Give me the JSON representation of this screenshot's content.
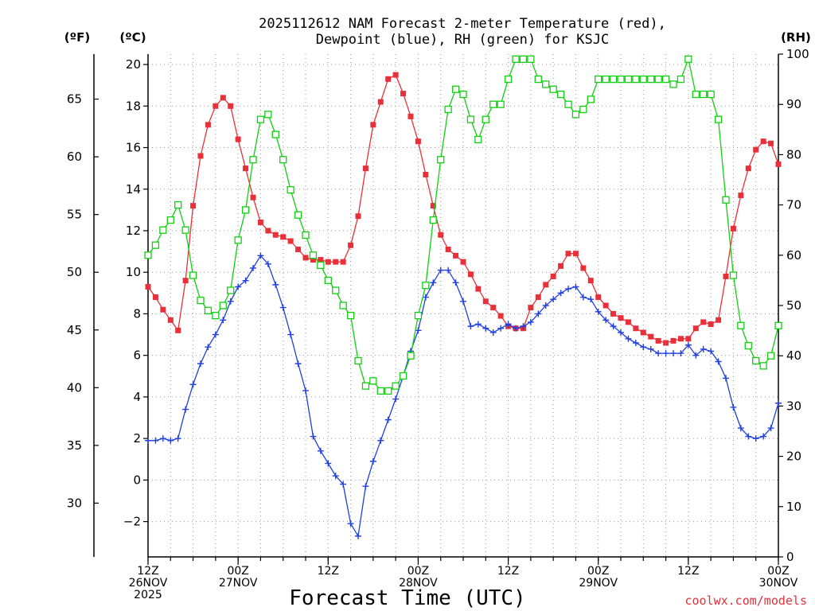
{
  "chart_data": {
    "type": "line",
    "title_lines": [
      "2025112612 NAM Forecast 2-meter Temperature (red),",
      "Dewpoint (blue), RH (green) for KSJC"
    ],
    "units": {
      "fahrenheit": "(ºF)",
      "celsius": "(ºC)",
      "rh": "(RH)"
    },
    "xlabel": "Forecast Time (UTC)",
    "credit": "coolwx.com/models",
    "x_range": [
      0,
      84
    ],
    "x_ticks": [
      {
        "x": 0,
        "lines": [
          "12Z",
          "26NOV",
          "2025"
        ]
      },
      {
        "x": 12,
        "lines": [
          "00Z",
          "27NOV"
        ]
      },
      {
        "x": 24,
        "lines": [
          "12Z"
        ]
      },
      {
        "x": 36,
        "lines": [
          "00Z",
          "28NOV"
        ]
      },
      {
        "x": 48,
        "lines": [
          "12Z"
        ]
      },
      {
        "x": 60,
        "lines": [
          "00Z",
          "29NOV"
        ]
      },
      {
        "x": 72,
        "lines": [
          "12Z"
        ]
      },
      {
        "x": 84,
        "lines": [
          "00Z",
          "30NOV"
        ]
      }
    ],
    "y_celsius": {
      "range": [
        -3.7,
        20.5
      ],
      "ticks": [
        -2,
        0,
        2,
        4,
        6,
        8,
        10,
        12,
        14,
        16,
        18,
        20
      ]
    },
    "y_fahrenheit": {
      "ticks": [
        30,
        35,
        40,
        45,
        50,
        55,
        60,
        65
      ]
    },
    "y_rh": {
      "range": [
        0,
        100
      ],
      "ticks": [
        0,
        10,
        20,
        30,
        40,
        50,
        60,
        70,
        80,
        90,
        100
      ]
    },
    "grid": true,
    "colors": {
      "temperature": "#e8303a",
      "dewpoint": "#2040e0",
      "rh": "#10d010",
      "grid": "#9a9a9a"
    },
    "series": [
      {
        "name": "Temperature",
        "axis": "celsius",
        "marker": "filled-square",
        "x": [
          0,
          1,
          2,
          3,
          4,
          5,
          6,
          7,
          8,
          9,
          10,
          11,
          12,
          13,
          14,
          15,
          16,
          17,
          18,
          19,
          20,
          21,
          22,
          23,
          24,
          25,
          26,
          27,
          28,
          29,
          30,
          31,
          32,
          33,
          34,
          35,
          36,
          37,
          38,
          39,
          40,
          41,
          42,
          43,
          44,
          45,
          46,
          47,
          48,
          49,
          50,
          51,
          52,
          53,
          54,
          55,
          56,
          57,
          58,
          59,
          60,
          61,
          62,
          63,
          64,
          65,
          66,
          67,
          68,
          69,
          70,
          71,
          72,
          73,
          74,
          75,
          76,
          77,
          78,
          79,
          80,
          81,
          82,
          83,
          84
        ],
        "values": [
          9.3,
          8.8,
          8.2,
          7.7,
          7.2,
          9.6,
          13.2,
          15.6,
          17.1,
          18.0,
          18.4,
          18.0,
          16.4,
          15.0,
          13.6,
          12.4,
          12.0,
          11.8,
          11.7,
          11.5,
          11.1,
          10.7,
          10.6,
          10.6,
          10.5,
          10.5,
          10.5,
          11.3,
          12.7,
          15.0,
          17.1,
          18.2,
          19.3,
          19.5,
          18.6,
          17.5,
          16.3,
          14.7,
          13.2,
          11.8,
          11.1,
          10.8,
          10.5,
          9.9,
          9.2,
          8.6,
          8.3,
          7.9,
          7.4,
          7.3,
          7.3,
          8.3,
          8.8,
          9.4,
          9.8,
          10.3,
          10.9,
          10.9,
          10.2,
          9.6,
          8.8,
          8.4,
          8.0,
          7.8,
          7.6,
          7.3,
          7.1,
          6.9,
          6.7,
          6.6,
          6.7,
          6.8,
          6.8,
          7.3,
          7.6,
          7.5,
          7.7,
          9.8,
          12.1,
          13.7,
          15.0,
          15.9,
          16.3,
          16.2,
          15.2
        ]
      },
      {
        "name": "Dewpoint",
        "axis": "celsius",
        "marker": "plus",
        "x": [
          0,
          1,
          2,
          3,
          4,
          5,
          6,
          7,
          8,
          9,
          10,
          11,
          12,
          13,
          14,
          15,
          16,
          17,
          18,
          19,
          20,
          21,
          22,
          23,
          24,
          25,
          26,
          27,
          28,
          29,
          30,
          31,
          32,
          33,
          34,
          35,
          36,
          37,
          38,
          39,
          40,
          41,
          42,
          43,
          44,
          45,
          46,
          47,
          48,
          49,
          50,
          51,
          52,
          53,
          54,
          55,
          56,
          57,
          58,
          59,
          60,
          61,
          62,
          63,
          64,
          65,
          66,
          67,
          68,
          69,
          70,
          71,
          72,
          73,
          74,
          75,
          76,
          77,
          78,
          79,
          80,
          81,
          82,
          83,
          84
        ],
        "values": [
          1.9,
          1.9,
          2.0,
          1.9,
          2.0,
          3.4,
          4.6,
          5.6,
          6.4,
          7.0,
          7.7,
          8.6,
          9.3,
          9.6,
          10.2,
          10.8,
          10.4,
          9.4,
          8.3,
          7.0,
          5.6,
          4.3,
          2.1,
          1.4,
          0.8,
          0.2,
          -0.2,
          -2.1,
          -2.7,
          -0.3,
          0.9,
          1.9,
          2.9,
          3.9,
          5.0,
          6.2,
          7.2,
          8.8,
          9.5,
          10.1,
          10.1,
          9.5,
          8.6,
          7.4,
          7.5,
          7.3,
          7.1,
          7.3,
          7.5,
          7.3,
          7.4,
          7.6,
          8.0,
          8.4,
          8.7,
          9.0,
          9.2,
          9.3,
          8.8,
          8.7,
          8.1,
          7.7,
          7.4,
          7.1,
          6.8,
          6.6,
          6.4,
          6.3,
          6.1,
          6.1,
          6.1,
          6.1,
          6.5,
          6.0,
          6.3,
          6.2,
          5.7,
          4.9,
          3.5,
          2.5,
          2.1,
          2.0,
          2.1,
          2.5,
          3.7
        ]
      },
      {
        "name": "RH",
        "axis": "rh",
        "marker": "open-square",
        "x": [
          0,
          1,
          2,
          3,
          4,
          5,
          6,
          7,
          8,
          9,
          10,
          11,
          12,
          13,
          14,
          15,
          16,
          17,
          18,
          19,
          20,
          21,
          22,
          23,
          24,
          25,
          26,
          27,
          28,
          29,
          30,
          31,
          32,
          33,
          34,
          35,
          36,
          37,
          38,
          39,
          40,
          41,
          42,
          43,
          44,
          45,
          46,
          47,
          48,
          49,
          50,
          51,
          52,
          53,
          54,
          55,
          56,
          57,
          58,
          59,
          60,
          61,
          62,
          63,
          64,
          65,
          66,
          67,
          68,
          69,
          70,
          71,
          72,
          73,
          74,
          75,
          76,
          77,
          78,
          79,
          80,
          81,
          82,
          83,
          84
        ],
        "values": [
          60,
          62,
          65,
          67,
          70,
          65,
          56,
          51,
          49,
          48,
          50,
          53,
          63,
          69,
          79,
          87,
          88,
          84,
          79,
          73,
          68,
          64,
          60,
          58,
          55,
          53,
          50,
          48,
          39,
          34,
          35,
          33,
          33,
          34,
          36,
          40,
          48,
          54,
          67,
          79,
          89,
          93,
          92,
          87,
          83,
          87,
          90,
          90,
          95,
          99,
          99,
          99,
          95,
          94,
          93,
          92,
          90,
          88,
          89,
          91,
          95,
          95,
          95,
          95,
          95,
          95,
          95,
          95,
          95,
          95,
          94,
          95,
          99,
          92,
          92,
          92,
          87,
          71,
          56,
          46,
          42,
          39,
          38,
          40,
          46
        ]
      }
    ]
  }
}
